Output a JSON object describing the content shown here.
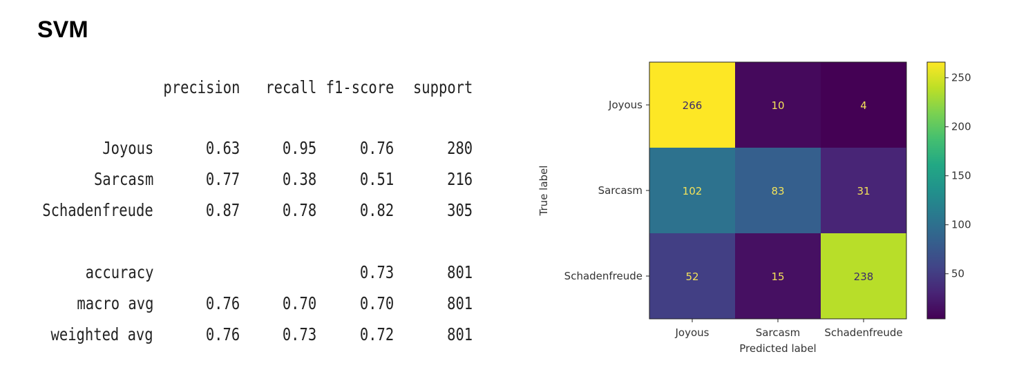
{
  "title": "SVM",
  "report": {
    "columns": [
      "precision",
      "recall",
      "f1-score",
      "support"
    ],
    "rows": [
      {
        "label": "Joyous",
        "values": [
          "0.63",
          "0.95",
          "0.76",
          "280"
        ]
      },
      {
        "label": "Sarcasm",
        "values": [
          "0.77",
          "0.38",
          "0.51",
          "216"
        ]
      },
      {
        "label": "Schadenfreude",
        "values": [
          "0.87",
          "0.78",
          "0.82",
          "305"
        ]
      },
      {
        "label": "accuracy",
        "values": [
          "",
          "",
          "0.73",
          "801"
        ]
      },
      {
        "label": "macro avg",
        "values": [
          "0.76",
          "0.70",
          "0.70",
          "801"
        ]
      },
      {
        "label": "weighted avg",
        "values": [
          "0.76",
          "0.73",
          "0.72",
          "801"
        ]
      }
    ]
  },
  "chart_data": {
    "type": "heatmap",
    "title": "",
    "xlabel": "Predicted label",
    "ylabel": "True label",
    "x_categories": [
      "Joyous",
      "Sarcasm",
      "Schadenfreude"
    ],
    "y_categories": [
      "Joyous",
      "Sarcasm",
      "Schadenfreude"
    ],
    "values": [
      [
        266,
        10,
        4
      ],
      [
        102,
        83,
        31
      ],
      [
        52,
        15,
        238
      ]
    ],
    "colormap": "viridis",
    "colorbar": {
      "min": 4,
      "max": 266,
      "ticks": [
        50,
        100,
        150,
        200,
        250
      ]
    },
    "grid": false
  }
}
